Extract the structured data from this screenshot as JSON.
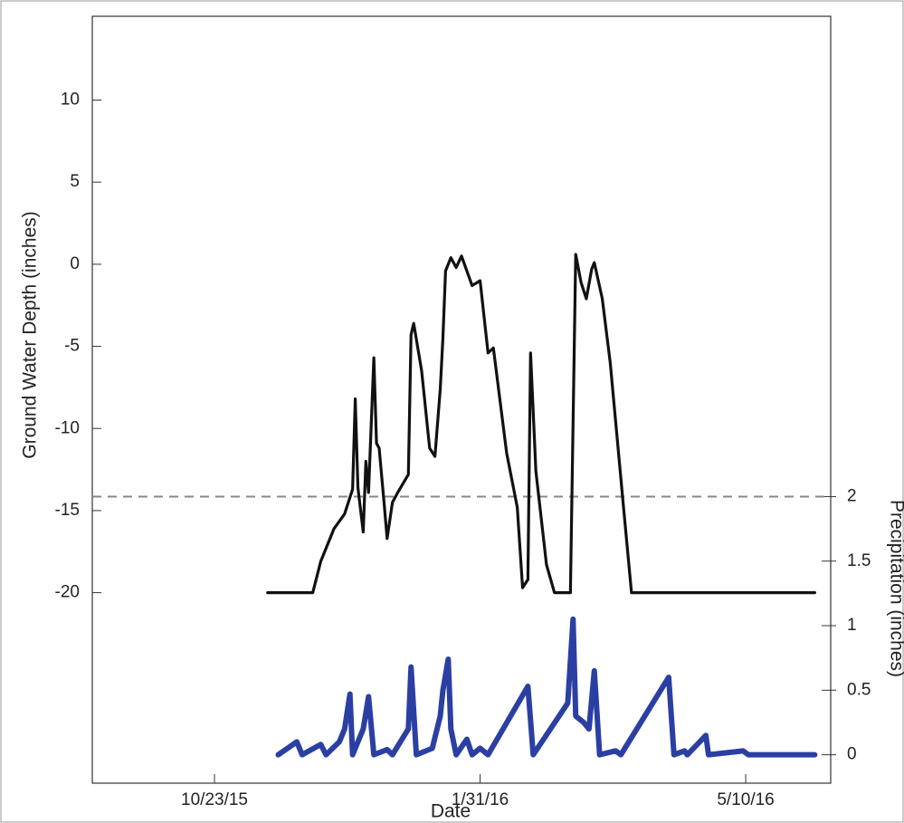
{
  "chart_data": {
    "type": "line",
    "xlabel": "Date",
    "ylabel": "Ground Water Depth (inches)",
    "y2label": "Precipitation (inches)",
    "xlim": [
      "2015-09-07",
      "2016-06-11"
    ],
    "xticks": [
      {
        "value": "2015-10-23",
        "label": "10/23/15"
      },
      {
        "value": "2016-01-31",
        "label": "1/31/16"
      },
      {
        "value": "2016-05-10",
        "label": "5/10/16"
      }
    ],
    "ylim": [
      -31.6,
      15.1
    ],
    "yticks": [
      10,
      5,
      0,
      -5,
      -10,
      -15,
      -20
    ],
    "y2lim": [
      -0.22,
      5.72
    ],
    "y2ticks": [
      0,
      0.5,
      1,
      1.5,
      2
    ],
    "reference_line": {
      "value": 2,
      "axis": "y2",
      "style": "dashed",
      "color": "#888888"
    },
    "series": [
      {
        "color": "#111111",
        "x": [
          "2015-11-12",
          "2015-11-29",
          "2015-12-02",
          "2015-12-07",
          "2015-12-11",
          "2015-12-13",
          "2015-12-14",
          "2015-12-15",
          "2015-12-16",
          "2015-12-18",
          "2015-12-19",
          "2015-12-20",
          "2015-12-22",
          "2015-12-23",
          "2015-12-24",
          "2015-12-26",
          "2015-12-27",
          "2015-12-29",
          "2015-12-31",
          "2016-01-04",
          "2016-01-05",
          "2016-01-06",
          "2016-01-09",
          "2016-01-12",
          "2016-01-14",
          "2016-01-16",
          "2016-01-17",
          "2016-01-18",
          "2016-01-20",
          "2016-01-22",
          "2016-01-24",
          "2016-01-28",
          "2016-01-31",
          "2016-02-03",
          "2016-02-05",
          "2016-02-10",
          "2016-02-14",
          "2016-02-16",
          "2016-02-18",
          "2016-02-19",
          "2016-02-21",
          "2016-02-25",
          "2016-02-28",
          "2016-03-05",
          "2016-03-07",
          "2016-03-09",
          "2016-03-11",
          "2016-03-13",
          "2016-03-14",
          "2016-03-17",
          "2016-03-20",
          "2016-03-25",
          "2016-03-28",
          "2016-06-05"
        ],
        "values": [
          -20,
          -20,
          -18.1,
          -16.1,
          -15.2,
          -14.2,
          -13.7,
          -8.2,
          -13.6,
          -16.3,
          -12.0,
          -13.9,
          -5.7,
          -10.9,
          -11.2,
          -14.8,
          -16.7,
          -14.5,
          -13.9,
          -12.8,
          -4.3,
          -3.6,
          -6.5,
          -11.2,
          -11.7,
          -7.6,
          -4.5,
          -0.4,
          0.4,
          -0.2,
          0.5,
          -1.3,
          -1.0,
          -5.4,
          -5.1,
          -11.5,
          -14.8,
          -19.7,
          -19.2,
          -5.4,
          -12.6,
          -18.3,
          -20,
          -20,
          0.6,
          -1.1,
          -2.1,
          -0.3,
          0.1,
          -2.1,
          -6.0,
          -14.8,
          -20,
          -20
        ]
      },
      {
        "color": "#2b3fa3",
        "axis": "y2",
        "x": [
          "2015-11-16",
          "2015-11-23",
          "2015-11-25",
          "2015-12-02",
          "2015-12-04",
          "2015-12-09",
          "2015-12-11",
          "2015-12-13",
          "2015-12-14",
          "2015-12-18",
          "2015-12-20",
          "2015-12-22",
          "2015-12-27",
          "2015-12-29",
          "2016-01-04",
          "2016-01-05",
          "2016-01-07",
          "2016-01-13",
          "2016-01-16",
          "2016-01-17",
          "2016-01-19",
          "2016-01-20",
          "2016-01-22",
          "2016-01-26",
          "2016-01-28",
          "2016-01-31",
          "2016-02-03",
          "2016-02-18",
          "2016-02-20",
          "2016-03-04",
          "2016-03-06",
          "2016-03-07",
          "2016-03-10",
          "2016-03-12",
          "2016-03-14",
          "2016-03-16",
          "2016-03-22",
          "2016-03-24",
          "2016-04-11",
          "2016-04-13",
          "2016-04-17",
          "2016-04-18",
          "2016-04-25",
          "2016-04-26",
          "2016-05-09",
          "2016-05-11",
          "2016-06-05"
        ],
        "values": [
          0,
          0.1,
          0,
          0.08,
          0,
          0.1,
          0.2,
          0.47,
          0,
          0.2,
          0.45,
          0,
          0.04,
          0,
          0.2,
          0.68,
          0,
          0.05,
          0.3,
          0.5,
          0.74,
          0.2,
          0,
          0.12,
          0,
          0.05,
          0,
          0.53,
          0,
          0.4,
          1.05,
          0.3,
          0.25,
          0.2,
          0.65,
          0,
          0.03,
          0,
          0.6,
          0,
          0.03,
          0,
          0.15,
          0,
          0.03,
          0,
          0
        ]
      }
    ]
  }
}
